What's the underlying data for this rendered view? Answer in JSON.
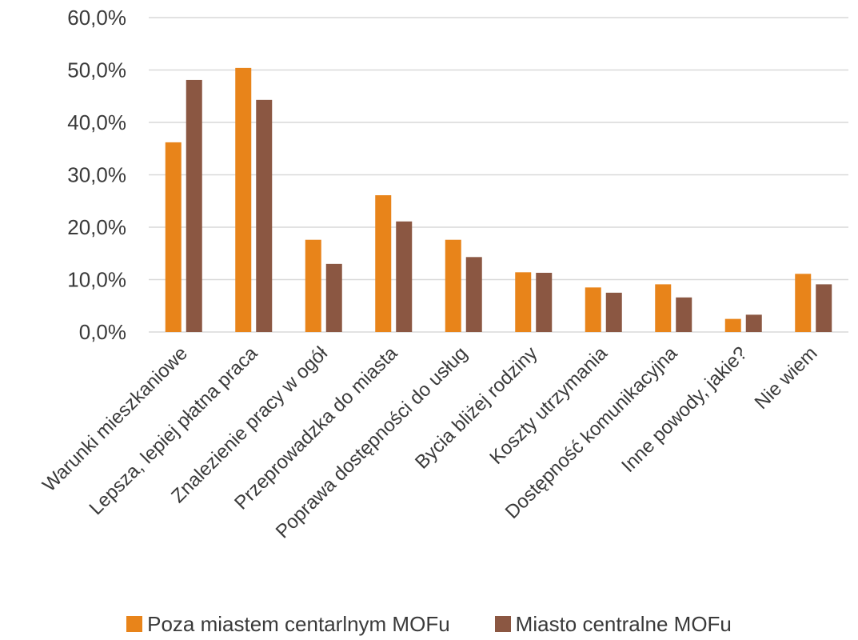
{
  "chart_data": {
    "type": "bar",
    "categories": [
      "Warunki mieszkaniowe",
      "Lepsza, lepiej płatna praca",
      "Znalezienie pracy w ogół",
      "Przeprowadzka do miasta",
      "Poprawa dostępności do usług",
      "Bycia bliżej rodziny",
      "Koszty utrzymania",
      "Dostępność komunikacyjna",
      "Inne powody, jakie?",
      "Nie wiem"
    ],
    "series": [
      {
        "name": "Poza miastem centarlnym MOFu",
        "color": "#E8841A",
        "values": [
          36.2,
          50.4,
          17.6,
          26.1,
          17.6,
          11.4,
          8.5,
          9.1,
          2.5,
          11.1
        ]
      },
      {
        "name": "Miasto centralne MOFu",
        "color": "#8B5742",
        "values": [
          48.1,
          44.3,
          13.0,
          21.1,
          14.3,
          11.3,
          7.5,
          6.6,
          3.3,
          9.1
        ]
      }
    ],
    "ylim": [
      0,
      60
    ],
    "yticks": [
      "0,0%",
      "10,0%",
      "20,0%",
      "30,0%",
      "40,0%",
      "50,0%",
      "60,0%"
    ],
    "grid": true,
    "gridColor": "#d9d9d9",
    "legend": "bottom"
  }
}
